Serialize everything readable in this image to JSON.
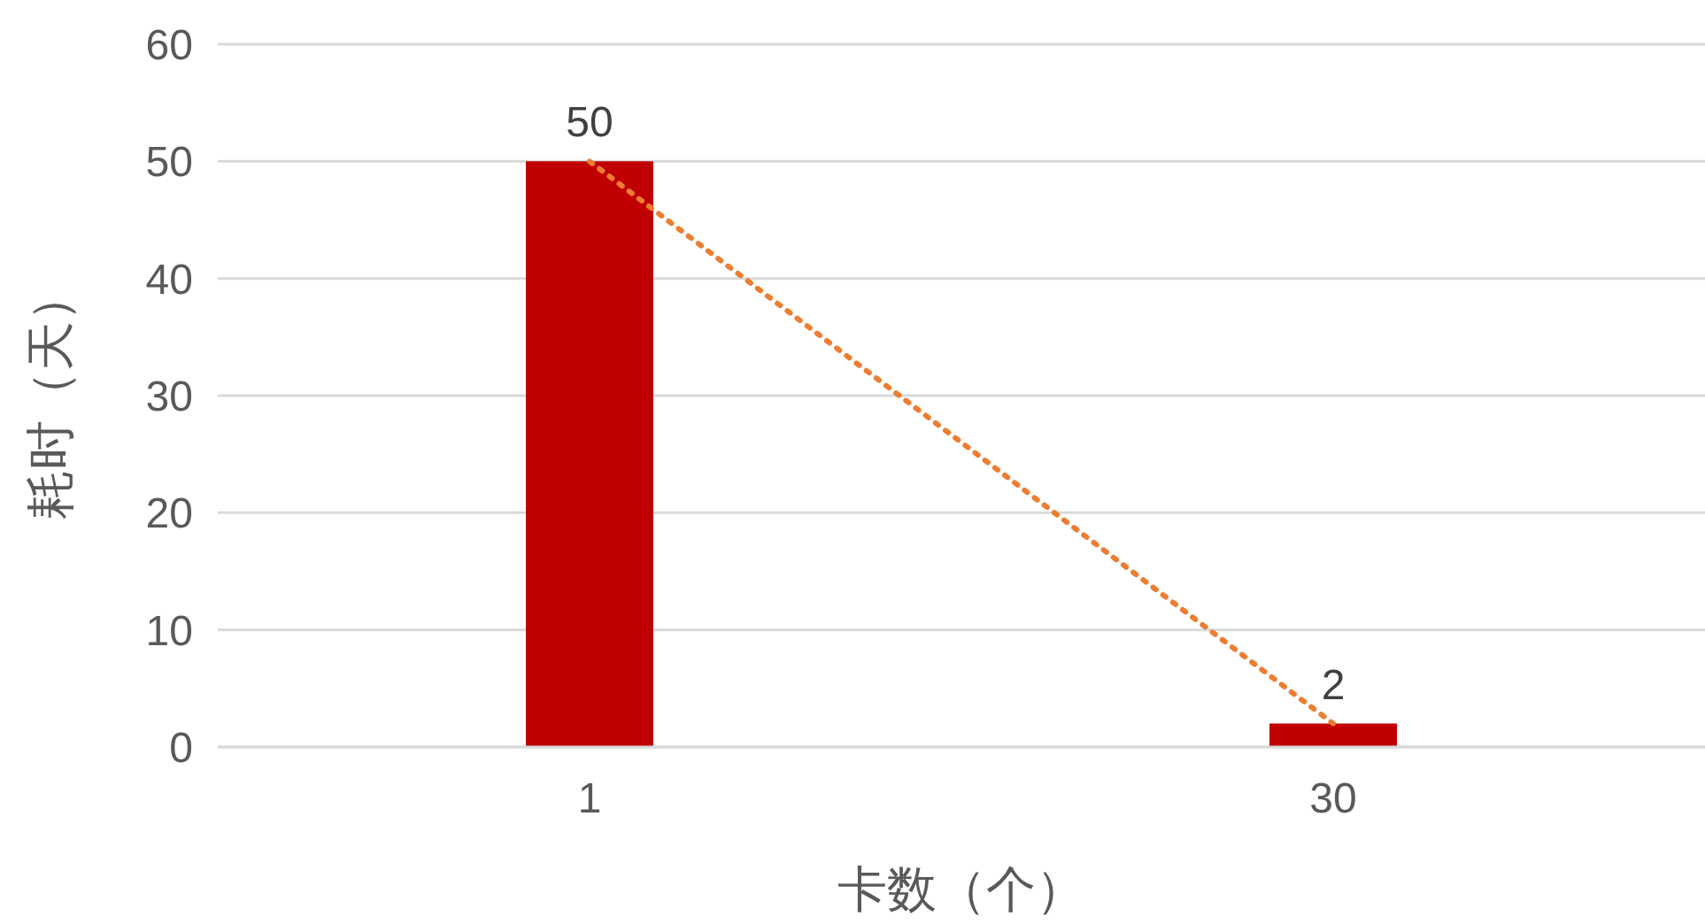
{
  "chart_data": {
    "type": "bar",
    "xlabel": "卡数（个）",
    "ylabel": "耗时（天）",
    "categories": [
      "1",
      "30"
    ],
    "series": [
      {
        "color": "#c00000",
        "values": [
          50,
          2
        ],
        "value_labels": [
          "50",
          "2"
        ]
      },
      {
        "type": "line",
        "color": "#ed7d31",
        "values": [
          50,
          2
        ],
        "line_style": "dotted",
        "marker": "none"
      }
    ],
    "ylim": [
      0,
      60
    ],
    "yticks": [
      0,
      10,
      20,
      30,
      40,
      50,
      60
    ],
    "grid": "y",
    "legend": false
  }
}
